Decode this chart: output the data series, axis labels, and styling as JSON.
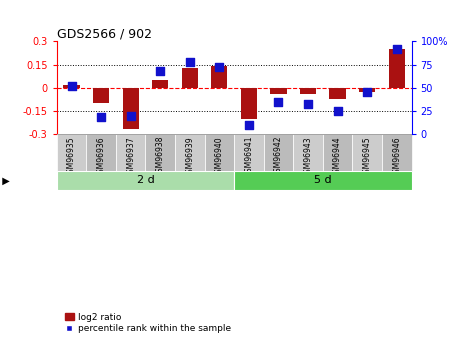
{
  "title": "GDS2566 / 902",
  "samples": [
    "GSM96935",
    "GSM96936",
    "GSM96937",
    "GSM96938",
    "GSM96939",
    "GSM96940",
    "GSM96941",
    "GSM96942",
    "GSM96943",
    "GSM96944",
    "GSM96945",
    "GSM96946"
  ],
  "log2_ratio": [
    0.02,
    -0.1,
    -0.265,
    0.05,
    0.13,
    0.14,
    -0.2,
    -0.04,
    -0.04,
    -0.07,
    -0.03,
    0.25
  ],
  "percentile": [
    52,
    18,
    20,
    68,
    78,
    72,
    10,
    35,
    33,
    25,
    45,
    92
  ],
  "groups": [
    {
      "label": "2 d",
      "start": 0,
      "end": 6,
      "color": "#90EE90"
    },
    {
      "label": "5 d",
      "start": 6,
      "end": 12,
      "color": "#66CC66"
    }
  ],
  "ylim": [
    -0.3,
    0.3
  ],
  "yticks_left": [
    -0.3,
    -0.15,
    0,
    0.15,
    0.3
  ],
  "ytick_labels_left": [
    "-0.3",
    "-0.15",
    "0",
    "0.15",
    "0.3"
  ],
  "yticks_right": [
    0,
    25,
    50,
    75,
    100
  ],
  "ytick_labels_right": [
    "0",
    "25",
    "50",
    "75",
    "100%"
  ],
  "hlines": [
    0.15,
    0.0,
    -0.15
  ],
  "bar_color": "#AA1111",
  "dot_color": "#1111CC",
  "bar_width": 0.55,
  "dot_size": 40,
  "background_color": "#ffffff",
  "label_bg_even": "#CCCCCC",
  "label_bg_odd": "#BBBBBB",
  "group1_color": "#AADDAA",
  "group2_color": "#55CC55"
}
